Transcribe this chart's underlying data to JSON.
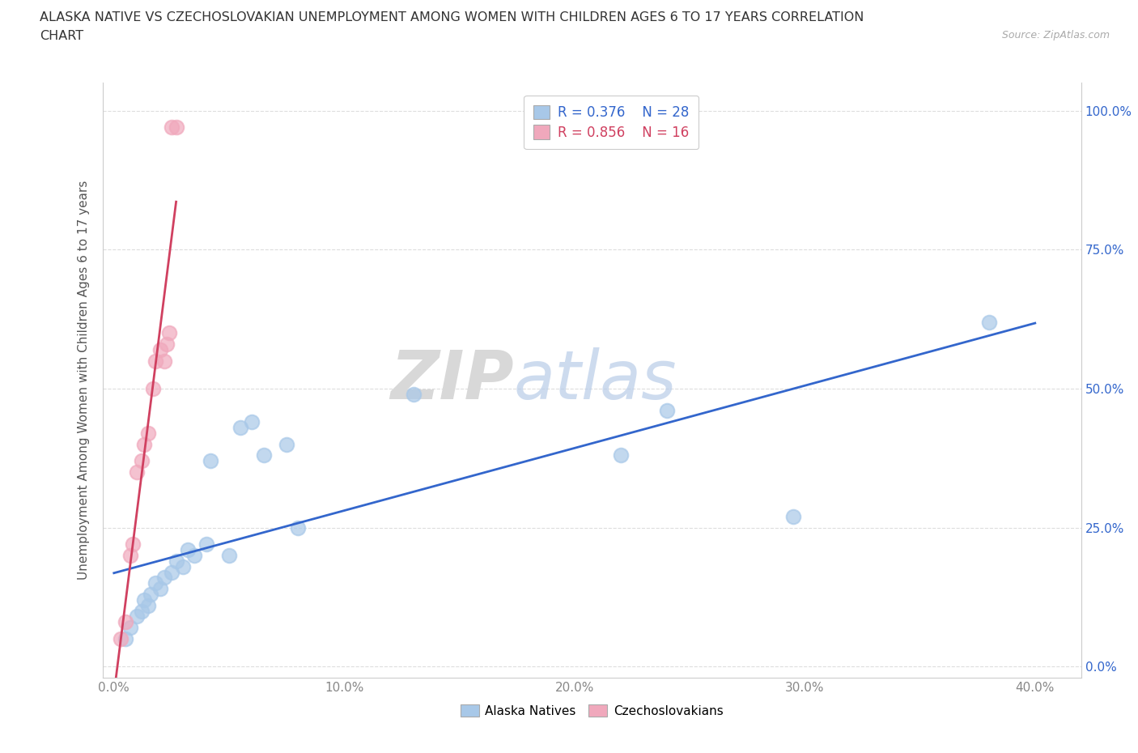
{
  "title_line1": "ALASKA NATIVE VS CZECHOSLOVAKIAN UNEMPLOYMENT AMONG WOMEN WITH CHILDREN AGES 6 TO 17 YEARS CORRELATION",
  "title_line2": "CHART",
  "source": "Source: ZipAtlas.com",
  "ylabel": "Unemployment Among Women with Children Ages 6 to 17 years",
  "xlabel_ticks": [
    "0.0%",
    "10.0%",
    "20.0%",
    "30.0%",
    "40.0%"
  ],
  "xlabel_vals": [
    0.0,
    0.1,
    0.2,
    0.3,
    0.4
  ],
  "ylabel_ticks": [
    "0.0%",
    "25.0%",
    "50.0%",
    "75.0%",
    "100.0%"
  ],
  "ylabel_vals": [
    0.0,
    0.25,
    0.5,
    0.75,
    1.0
  ],
  "xlim": [
    -0.005,
    0.42
  ],
  "ylim": [
    -0.02,
    1.05
  ],
  "alaska_x": [
    0.005,
    0.007,
    0.01,
    0.012,
    0.013,
    0.015,
    0.016,
    0.018,
    0.02,
    0.022,
    0.025,
    0.027,
    0.03,
    0.032,
    0.035,
    0.04,
    0.042,
    0.05,
    0.055,
    0.06,
    0.065,
    0.075,
    0.08,
    0.13,
    0.22,
    0.24,
    0.295,
    0.38
  ],
  "alaska_y": [
    0.05,
    0.07,
    0.09,
    0.1,
    0.12,
    0.11,
    0.13,
    0.15,
    0.14,
    0.16,
    0.17,
    0.19,
    0.18,
    0.21,
    0.2,
    0.22,
    0.37,
    0.2,
    0.43,
    0.44,
    0.38,
    0.4,
    0.25,
    0.49,
    0.38,
    0.46,
    0.27,
    0.62
  ],
  "czech_x": [
    0.003,
    0.005,
    0.007,
    0.008,
    0.01,
    0.012,
    0.013,
    0.015,
    0.017,
    0.018,
    0.02,
    0.022,
    0.023,
    0.024,
    0.025,
    0.027
  ],
  "czech_y": [
    0.05,
    0.08,
    0.2,
    0.22,
    0.35,
    0.37,
    0.4,
    0.42,
    0.5,
    0.55,
    0.57,
    0.55,
    0.58,
    0.6,
    0.97,
    0.97
  ],
  "alaska_color": "#a8c8e8",
  "czech_color": "#f0a8bc",
  "alaska_line_color": "#3366cc",
  "czech_line_color": "#d04060",
  "alaska_R": 0.376,
  "alaska_N": 28,
  "czech_R": 0.856,
  "czech_N": 16,
  "watermark_zip": "ZIP",
  "watermark_atlas": "atlas",
  "background_color": "#ffffff",
  "grid_color": "#dddddd",
  "right_tick_color": "#3366cc"
}
